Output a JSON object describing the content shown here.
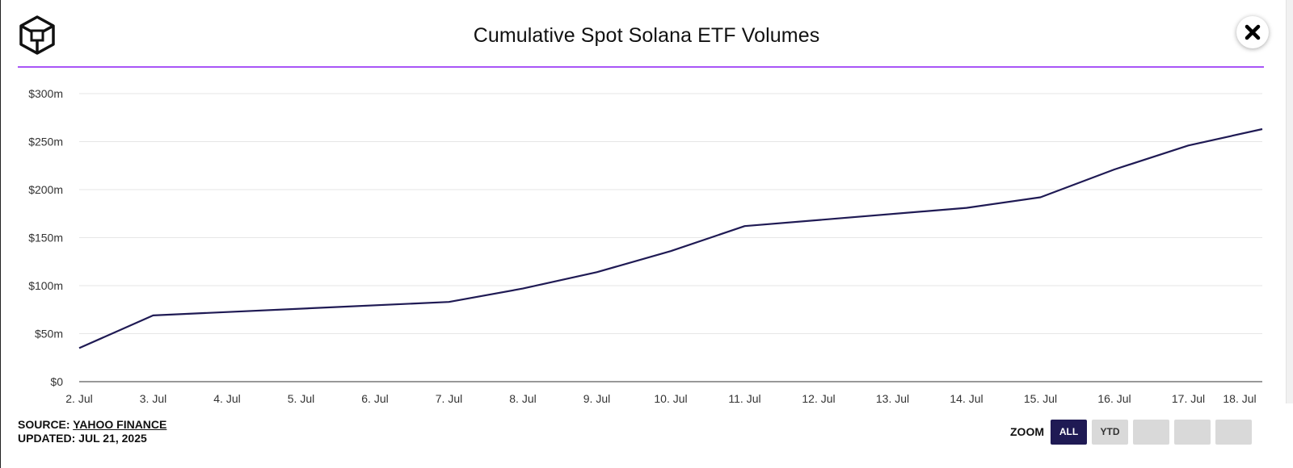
{
  "header": {
    "title": "Cumulative Spot Solana ETF Volumes",
    "accent_color": "#a855f7",
    "logo_icon": "cube-logo-icon",
    "close_icon": "close-x-icon"
  },
  "footer": {
    "source_prefix": "SOURCE:",
    "source_link": "YAHOO FINANCE",
    "updated": "UPDATED: JUL 21, 2025"
  },
  "zoom": {
    "label": "ZOOM",
    "buttons": [
      "ALL",
      "YTD",
      "",
      "",
      ""
    ],
    "selected": "ALL"
  },
  "chart_data": {
    "type": "line",
    "title": "Cumulative Spot Solana ETF Volumes",
    "x": [
      "2. Jul",
      "3. Jul",
      "4. Jul",
      "5. Jul",
      "6. Jul",
      "7. Jul",
      "8. Jul",
      "9. Jul",
      "10. Jul",
      "11. Jul",
      "12. Jul",
      "13. Jul",
      "14. Jul",
      "15. Jul",
      "16. Jul",
      "17. Jul",
      "18. Jul"
    ],
    "y_ticks": [
      "$0",
      "$50m",
      "$100m",
      "$150m",
      "$200m",
      "$250m",
      "$300m"
    ],
    "ylim": [
      0,
      300
    ],
    "y_unit": "$m",
    "grid": true,
    "line_color": "#1f1a54",
    "points": [
      {
        "x": "2. Jul",
        "y": 35
      },
      {
        "x": "3. Jul",
        "y": 69
      },
      {
        "x": "7. Jul",
        "y": 83
      },
      {
        "x": "8. Jul",
        "y": 97
      },
      {
        "x": "9. Jul",
        "y": 114
      },
      {
        "x": "10. Jul",
        "y": 136
      },
      {
        "x": "11. Jul",
        "y": 162
      },
      {
        "x": "14. Jul",
        "y": 181
      },
      {
        "x": "15. Jul",
        "y": 192
      },
      {
        "x": "16. Jul",
        "y": 221
      },
      {
        "x": "17. Jul",
        "y": 246
      },
      {
        "x": "18. Jul",
        "y": 263
      }
    ]
  }
}
